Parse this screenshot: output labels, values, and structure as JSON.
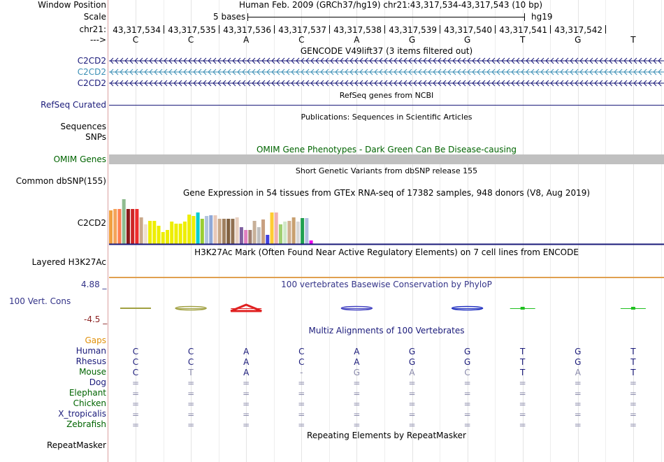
{
  "ruler": {
    "window_position_label": "Window Position",
    "window_position_value": "Human Feb. 2009 (GRCh37/hg19)   chr21:43,317,534-43,317,543 (10 bp)",
    "scale_label": "Scale",
    "scale_value": "5 bases",
    "assembly": "hg19",
    "chrom_label": "chr21:",
    "strand_label": "--->",
    "coords": [
      "43,317,534",
      "43,317,535",
      "43,317,536",
      "43,317,537",
      "43,317,538",
      "43,317,539",
      "43,317,540",
      "43,317,541",
      "43,317,542"
    ],
    "bases": [
      "C",
      "C",
      "A",
      "C",
      "A",
      "G",
      "G",
      "T",
      "G",
      "T"
    ]
  },
  "gencode": {
    "title": "GENCODE V49lift37 (3 items filtered out)",
    "rows": [
      {
        "label": "C2CD2",
        "color": "#1a1a7a"
      },
      {
        "label": "C2CD2",
        "color": "#3b8fb5"
      },
      {
        "label": "C2CD2",
        "color": "#1a1a7a"
      }
    ]
  },
  "refseq": {
    "title": "RefSeq genes from NCBI",
    "label": "RefSeq Curated",
    "color": "#1a1a7a"
  },
  "publications": {
    "title": "Publications: Sequences in Scientific Articles",
    "label1": "Sequences",
    "label2": "SNPs"
  },
  "omim": {
    "title": "OMIM Gene Phenotypes - Dark Green Can Be Disease-causing",
    "label": "OMIM Genes",
    "color": "#006400"
  },
  "dbsnp": {
    "title": "Short Genetic Variants from dbSNP release 155",
    "label": "Common dbSNP(155)"
  },
  "gtex": {
    "title": "Gene Expression in 54 tissues from GTEx RNA-seq of 17382 samples, 948 donors (V8, Aug 2019)",
    "label": "C2CD2",
    "bars": [
      {
        "v": 0.75,
        "c": "#f0a040"
      },
      {
        "v": 0.78,
        "c": "#f4a35a"
      },
      {
        "v": 0.78,
        "c": "#ff7f50"
      },
      {
        "v": 1.0,
        "c": "#8fbc8f"
      },
      {
        "v": 0.78,
        "c": "#8b1a1a"
      },
      {
        "v": 0.78,
        "c": "#cd2626"
      },
      {
        "v": 0.78,
        "c": "#ee2c2c"
      },
      {
        "v": 0.6,
        "c": "#c9a88a"
      },
      {
        "v": 0.44,
        "c": "#eedfcc"
      },
      {
        "v": 0.52,
        "c": "#eeee00"
      },
      {
        "v": 0.52,
        "c": "#eeee00"
      },
      {
        "v": 0.41,
        "c": "#eeee00"
      },
      {
        "v": 0.27,
        "c": "#eeee00"
      },
      {
        "v": 0.32,
        "c": "#eeee00"
      },
      {
        "v": 0.5,
        "c": "#eeee00"
      },
      {
        "v": 0.45,
        "c": "#eeee00"
      },
      {
        "v": 0.46,
        "c": "#eeee00"
      },
      {
        "v": 0.5,
        "c": "#eeee00"
      },
      {
        "v": 0.66,
        "c": "#eeee00"
      },
      {
        "v": 0.62,
        "c": "#eeee00"
      },
      {
        "v": 0.71,
        "c": "#00ced1"
      },
      {
        "v": 0.56,
        "c": "#9acd32"
      },
      {
        "v": 0.62,
        "c": "#b0c4de"
      },
      {
        "v": 0.64,
        "c": "#8fa8d8"
      },
      {
        "v": 0.64,
        "c": "#e8c8b8"
      },
      {
        "v": 0.57,
        "c": "#c9a888"
      },
      {
        "v": 0.57,
        "c": "#a08060"
      },
      {
        "v": 0.57,
        "c": "#806040"
      },
      {
        "v": 0.57,
        "c": "#907050"
      },
      {
        "v": 0.6,
        "c": "#e8d0c0"
      },
      {
        "v": 0.37,
        "c": "#8060a0"
      },
      {
        "v": 0.31,
        "c": "#e080c0"
      },
      {
        "v": 0.31,
        "c": "#a08070"
      },
      {
        "v": 0.52,
        "c": "#c8b098"
      },
      {
        "v": 0.37,
        "c": "#c0c0c0"
      },
      {
        "v": 0.54,
        "c": "#c8a080"
      },
      {
        "v": 0.2,
        "c": "#4040e0"
      },
      {
        "v": 0.71,
        "c": "#ffcc33"
      },
      {
        "v": 0.71,
        "c": "#f0b0b0"
      },
      {
        "v": 0.43,
        "c": "#a0d070"
      },
      {
        "v": 0.5,
        "c": "#d0e8c8"
      },
      {
        "v": 0.52,
        "c": "#d0b090"
      },
      {
        "v": 0.6,
        "c": "#c8a070"
      },
      {
        "v": 0.5,
        "c": "#d8d8d8"
      },
      {
        "v": 0.58,
        "c": "#20a050"
      },
      {
        "v": 0.58,
        "c": "#b0c0e0"
      },
      {
        "v": 0.08,
        "c": "#ee00ee"
      }
    ]
  },
  "h3k27ac": {
    "title": "H3K27Ac Mark (Often Found Near Active Regulatory Elements) on 7 cell lines from ENCODE",
    "label": "Layered H3K27Ac"
  },
  "phylop": {
    "title": "100 vertebrates Basewise Conservation by PhyloP",
    "label": "100 Vert. Cons",
    "max": "4.88",
    "min": "-4.5"
  },
  "multiz": {
    "title": "Multiz Alignments of 100 Vertebrates",
    "species": [
      {
        "name": "Gaps",
        "color": "#e0900a",
        "bases": [
          "",
          "",
          "",
          "",
          "",
          "",
          "",
          "",
          "",
          ""
        ]
      },
      {
        "name": "Human",
        "color": "#1a1a7a",
        "bases": [
          "C",
          "C",
          "A",
          "C",
          "A",
          "G",
          "G",
          "T",
          "G",
          "T"
        ]
      },
      {
        "name": "Rhesus",
        "color": "#1a1a7a",
        "bases": [
          "C",
          "C",
          "A",
          "C",
          "A",
          "G",
          "G",
          "T",
          "G",
          "T"
        ]
      },
      {
        "name": "Mouse",
        "color": "#006400",
        "bases": [
          "C",
          "T",
          "A",
          "-",
          "G",
          "A",
          "C",
          "T",
          "A",
          "T"
        ]
      },
      {
        "name": "Dog",
        "color": "#1a1a7a",
        "bases": [
          "=",
          "=",
          "=",
          "=",
          "=",
          "=",
          "=",
          "=",
          "=",
          "="
        ]
      },
      {
        "name": "Elephant",
        "color": "#006400",
        "bases": [
          "=",
          "=",
          "=",
          "=",
          "=",
          "=",
          "=",
          "=",
          "=",
          "="
        ]
      },
      {
        "name": "Chicken",
        "color": "#006400",
        "bases": [
          "=",
          "=",
          "=",
          "=",
          "=",
          "=",
          "=",
          "=",
          "=",
          "="
        ]
      },
      {
        "name": "X_tropicalis",
        "color": "#1a1a7a",
        "bases": [
          "=",
          "=",
          "=",
          "=",
          "=",
          "=",
          "=",
          "=",
          "=",
          "="
        ]
      },
      {
        "name": "Zebrafish",
        "color": "#006400",
        "bases": [
          "=",
          "=",
          "=",
          "=",
          "=",
          "=",
          "=",
          "=",
          "=",
          "="
        ]
      }
    ]
  },
  "repeatmasker": {
    "title": "Repeating Elements by RepeatMasker",
    "label": "RepeatMasker"
  }
}
